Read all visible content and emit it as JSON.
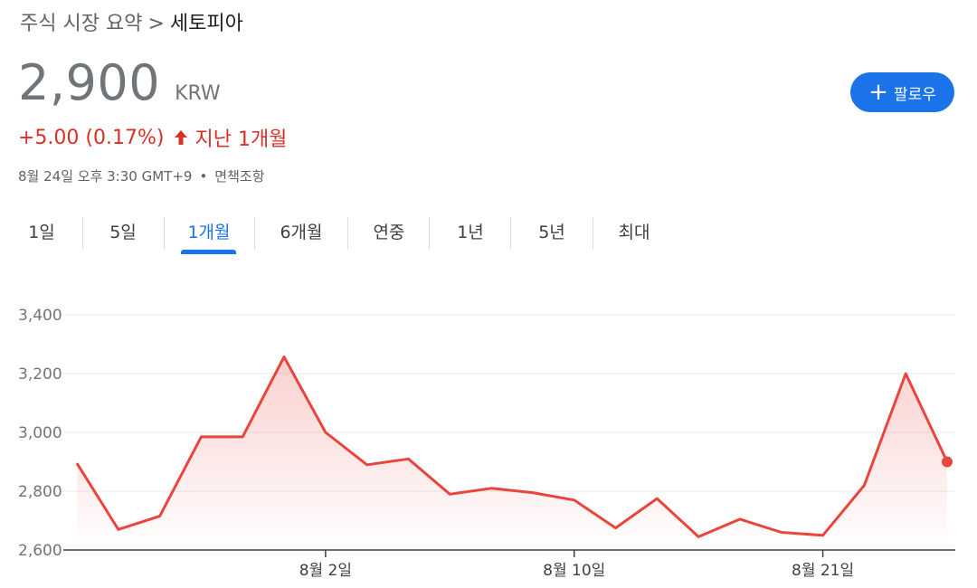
{
  "breadcrumb": {
    "parent": "주식 시장 요약",
    "separator": ">",
    "current": "세토피아"
  },
  "quote": {
    "price": "2,900",
    "currency": "KRW",
    "change": "+5.00 (0.17%)",
    "period": "지난 1개월",
    "timestamp": "8월 24일 오후 3:30 GMT+9",
    "disclaimer": "면책조항"
  },
  "follow_button": {
    "label": "팔로우",
    "icon": "plus-icon",
    "color": "#1a73e8"
  },
  "tabs": [
    "1일",
    "5일",
    "1개월",
    "6개월",
    "연중",
    "1년",
    "5년",
    "최대"
  ],
  "active_tab": "1개월",
  "colors": {
    "positive": "#d93025",
    "accent": "#1a73e8",
    "line": "#e8453c"
  },
  "chart_data": {
    "type": "area",
    "series": [
      {
        "values": [
          2895,
          2670,
          2715,
          2985,
          2985,
          3257,
          3000,
          2890,
          2910,
          2790,
          2810,
          2795,
          2770,
          2675,
          2775,
          2645,
          2705,
          2660,
          2650,
          2820,
          3200,
          2900
        ]
      }
    ],
    "x_tick_labels": [
      "8월 2일",
      "8월 10일",
      "8월 21일"
    ],
    "y_tick_labels": [
      "3,400",
      "3,200",
      "3,000",
      "2,800",
      "2,600"
    ],
    "ylim": [
      2600,
      3400
    ],
    "grid": true
  }
}
